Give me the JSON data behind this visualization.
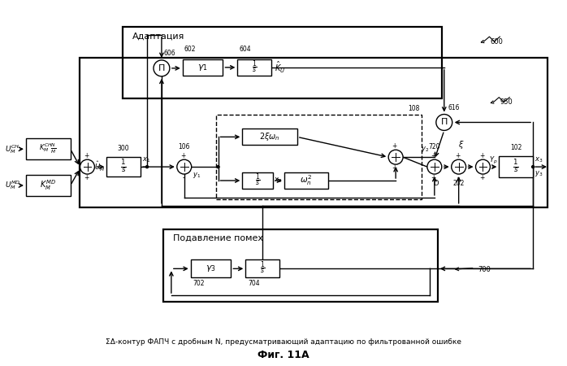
{
  "adapt_label": "Адаптация",
  "noise_label": "Подавление помех",
  "caption": "ΣΔ-контур ФАПЧ с дробным N, предусматривающий адаптацию по фильтрованной ошибке",
  "fig_label": "Фиг. 11А",
  "bg_color": "#ffffff",
  "line_color": "#000000"
}
